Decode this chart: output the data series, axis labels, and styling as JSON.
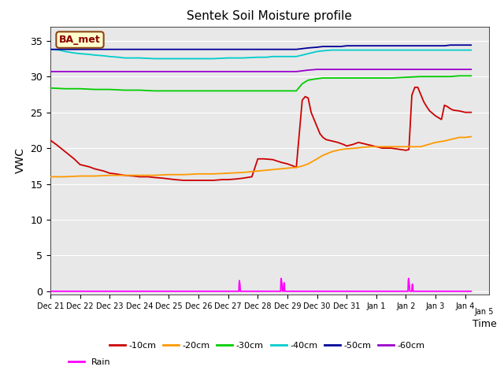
{
  "title": "Sentek Soil Moisture profile",
  "xlabel": "Time",
  "ylabel": "VWC",
  "annotation": "BA_met",
  "ylim": [
    -0.5,
    37
  ],
  "yticks": [
    0,
    5,
    10,
    15,
    20,
    25,
    30,
    35
  ],
  "background_color": "#e8e8e8",
  "figure_color": "#ffffff",
  "series": {
    "-10cm": {
      "color": "#cc0000",
      "points": [
        [
          21.0,
          21.1
        ],
        [
          21.2,
          20.5
        ],
        [
          21.5,
          19.5
        ],
        [
          21.8,
          18.5
        ],
        [
          22.0,
          17.7
        ],
        [
          22.3,
          17.4
        ],
        [
          22.5,
          17.1
        ],
        [
          22.8,
          16.8
        ],
        [
          23.0,
          16.5
        ],
        [
          23.2,
          16.4
        ],
        [
          23.5,
          16.2
        ],
        [
          23.8,
          16.1
        ],
        [
          24.0,
          16.0
        ],
        [
          24.3,
          16.0
        ],
        [
          24.5,
          15.9
        ],
        [
          24.8,
          15.8
        ],
        [
          25.0,
          15.7
        ],
        [
          25.2,
          15.6
        ],
        [
          25.5,
          15.5
        ],
        [
          25.8,
          15.5
        ],
        [
          26.0,
          15.5
        ],
        [
          26.3,
          15.5
        ],
        [
          26.5,
          15.5
        ],
        [
          26.8,
          15.6
        ],
        [
          27.0,
          15.6
        ],
        [
          27.3,
          15.7
        ],
        [
          27.5,
          15.8
        ],
        [
          27.8,
          16.0
        ],
        [
          28.0,
          18.5
        ],
        [
          28.2,
          18.5
        ],
        [
          28.5,
          18.4
        ],
        [
          28.8,
          18.0
        ],
        [
          29.0,
          17.8
        ],
        [
          29.2,
          17.5
        ],
        [
          29.3,
          17.3
        ],
        [
          29.5,
          26.7
        ],
        [
          29.6,
          27.2
        ],
        [
          29.7,
          27.0
        ],
        [
          29.8,
          25.0
        ],
        [
          30.0,
          23.0
        ],
        [
          30.1,
          22.0
        ],
        [
          30.2,
          21.5
        ],
        [
          30.3,
          21.2
        ],
        [
          30.5,
          21.0
        ],
        [
          30.7,
          20.8
        ],
        [
          30.9,
          20.5
        ],
        [
          31.0,
          20.3
        ],
        [
          31.2,
          20.5
        ],
        [
          31.4,
          20.8
        ],
        [
          31.5,
          20.7
        ],
        [
          32.0,
          20.2
        ],
        [
          32.2,
          20.0
        ],
        [
          32.5,
          20.0
        ],
        [
          33.0,
          19.7
        ],
        [
          33.1,
          19.8
        ],
        [
          33.2,
          27.4
        ],
        [
          33.3,
          28.5
        ],
        [
          33.4,
          28.5
        ],
        [
          33.5,
          27.5
        ],
        [
          33.6,
          26.5
        ],
        [
          33.7,
          25.8
        ],
        [
          33.8,
          25.2
        ],
        [
          34.0,
          24.5
        ],
        [
          34.2,
          24.0
        ],
        [
          34.3,
          26.0
        ],
        [
          34.4,
          25.8
        ],
        [
          34.5,
          25.5
        ],
        [
          34.6,
          25.3
        ],
        [
          34.8,
          25.2
        ],
        [
          35.0,
          25.0
        ],
        [
          35.2,
          25.0
        ]
      ]
    },
    "-20cm": {
      "color": "#ff9900",
      "points": [
        [
          21.0,
          16.0
        ],
        [
          21.5,
          16.0
        ],
        [
          22.0,
          16.1
        ],
        [
          22.5,
          16.1
        ],
        [
          23.0,
          16.2
        ],
        [
          23.5,
          16.2
        ],
        [
          24.0,
          16.2
        ],
        [
          24.5,
          16.2
        ],
        [
          25.0,
          16.3
        ],
        [
          25.5,
          16.3
        ],
        [
          26.0,
          16.4
        ],
        [
          26.5,
          16.4
        ],
        [
          27.0,
          16.5
        ],
        [
          27.5,
          16.6
        ],
        [
          28.0,
          16.8
        ],
        [
          28.5,
          17.0
        ],
        [
          29.0,
          17.2
        ],
        [
          29.3,
          17.3
        ],
        [
          29.5,
          17.5
        ],
        [
          29.7,
          17.8
        ],
        [
          30.0,
          18.5
        ],
        [
          30.2,
          19.0
        ],
        [
          30.5,
          19.5
        ],
        [
          30.8,
          19.8
        ],
        [
          31.0,
          19.9
        ],
        [
          31.3,
          20.0
        ],
        [
          31.5,
          20.1
        ],
        [
          31.8,
          20.2
        ],
        [
          32.0,
          20.2
        ],
        [
          32.2,
          20.2
        ],
        [
          32.5,
          20.2
        ],
        [
          33.0,
          20.2
        ],
        [
          33.2,
          20.2
        ],
        [
          33.5,
          20.2
        ],
        [
          34.0,
          20.8
        ],
        [
          34.3,
          21.0
        ],
        [
          34.5,
          21.2
        ],
        [
          34.8,
          21.5
        ],
        [
          35.0,
          21.5
        ],
        [
          35.2,
          21.6
        ]
      ]
    },
    "-30cm": {
      "color": "#00cc00",
      "points": [
        [
          21.0,
          28.4
        ],
        [
          21.5,
          28.3
        ],
        [
          22.0,
          28.3
        ],
        [
          22.5,
          28.2
        ],
        [
          23.0,
          28.2
        ],
        [
          23.5,
          28.1
        ],
        [
          24.0,
          28.1
        ],
        [
          24.5,
          28.0
        ],
        [
          25.0,
          28.0
        ],
        [
          25.5,
          28.0
        ],
        [
          26.0,
          28.0
        ],
        [
          26.5,
          28.0
        ],
        [
          27.0,
          28.0
        ],
        [
          27.5,
          28.0
        ],
        [
          28.0,
          28.0
        ],
        [
          28.5,
          28.0
        ],
        [
          29.0,
          28.0
        ],
        [
          29.3,
          28.0
        ],
        [
          29.5,
          29.0
        ],
        [
          29.7,
          29.5
        ],
        [
          30.0,
          29.7
        ],
        [
          30.2,
          29.8
        ],
        [
          30.5,
          29.8
        ],
        [
          30.8,
          29.8
        ],
        [
          31.0,
          29.8
        ],
        [
          31.5,
          29.8
        ],
        [
          32.0,
          29.8
        ],
        [
          32.5,
          29.8
        ],
        [
          33.0,
          29.9
        ],
        [
          33.5,
          30.0
        ],
        [
          34.0,
          30.0
        ],
        [
          34.3,
          30.0
        ],
        [
          34.5,
          30.0
        ],
        [
          34.8,
          30.1
        ],
        [
          35.0,
          30.1
        ],
        [
          35.2,
          30.1
        ]
      ]
    },
    "-40cm": {
      "color": "#00cccc",
      "points": [
        [
          21.0,
          33.8
        ],
        [
          21.3,
          33.7
        ],
        [
          21.5,
          33.5
        ],
        [
          21.8,
          33.3
        ],
        [
          22.0,
          33.2
        ],
        [
          22.3,
          33.1
        ],
        [
          22.5,
          33.0
        ],
        [
          22.8,
          32.9
        ],
        [
          23.0,
          32.8
        ],
        [
          23.3,
          32.7
        ],
        [
          23.5,
          32.6
        ],
        [
          23.8,
          32.6
        ],
        [
          24.0,
          32.6
        ],
        [
          24.5,
          32.5
        ],
        [
          25.0,
          32.5
        ],
        [
          25.5,
          32.5
        ],
        [
          26.0,
          32.5
        ],
        [
          26.5,
          32.5
        ],
        [
          27.0,
          32.6
        ],
        [
          27.5,
          32.6
        ],
        [
          28.0,
          32.7
        ],
        [
          28.3,
          32.7
        ],
        [
          28.5,
          32.8
        ],
        [
          29.0,
          32.8
        ],
        [
          29.3,
          32.8
        ],
        [
          29.5,
          33.0
        ],
        [
          29.7,
          33.2
        ],
        [
          30.0,
          33.5
        ],
        [
          30.2,
          33.6
        ],
        [
          30.5,
          33.7
        ],
        [
          30.8,
          33.7
        ],
        [
          31.0,
          33.7
        ],
        [
          31.5,
          33.7
        ],
        [
          32.0,
          33.7
        ],
        [
          32.5,
          33.7
        ],
        [
          33.0,
          33.7
        ],
        [
          33.5,
          33.7
        ],
        [
          34.0,
          33.7
        ],
        [
          34.5,
          33.7
        ],
        [
          35.0,
          33.7
        ],
        [
          35.2,
          33.7
        ]
      ]
    },
    "-50cm": {
      "color": "#000099",
      "points": [
        [
          21.0,
          33.8
        ],
        [
          21.5,
          33.8
        ],
        [
          22.0,
          33.8
        ],
        [
          22.5,
          33.8
        ],
        [
          23.0,
          33.8
        ],
        [
          23.5,
          33.8
        ],
        [
          24.0,
          33.8
        ],
        [
          24.5,
          33.8
        ],
        [
          25.0,
          33.8
        ],
        [
          25.5,
          33.8
        ],
        [
          26.0,
          33.8
        ],
        [
          26.5,
          33.8
        ],
        [
          27.0,
          33.8
        ],
        [
          27.5,
          33.8
        ],
        [
          28.0,
          33.8
        ],
        [
          28.5,
          33.8
        ],
        [
          29.0,
          33.8
        ],
        [
          29.3,
          33.8
        ],
        [
          29.5,
          33.9
        ],
        [
          29.7,
          34.0
        ],
        [
          30.0,
          34.1
        ],
        [
          30.2,
          34.2
        ],
        [
          30.5,
          34.2
        ],
        [
          30.8,
          34.2
        ],
        [
          31.0,
          34.3
        ],
        [
          31.5,
          34.3
        ],
        [
          32.0,
          34.3
        ],
        [
          32.5,
          34.3
        ],
        [
          33.0,
          34.3
        ],
        [
          33.5,
          34.3
        ],
        [
          34.0,
          34.3
        ],
        [
          34.3,
          34.3
        ],
        [
          34.5,
          34.4
        ],
        [
          34.8,
          34.4
        ],
        [
          35.0,
          34.4
        ],
        [
          35.2,
          34.4
        ]
      ]
    },
    "-60cm": {
      "color": "#9900cc",
      "points": [
        [
          21.0,
          30.7
        ],
        [
          21.5,
          30.7
        ],
        [
          22.0,
          30.7
        ],
        [
          22.5,
          30.7
        ],
        [
          23.0,
          30.7
        ],
        [
          23.5,
          30.7
        ],
        [
          24.0,
          30.7
        ],
        [
          24.5,
          30.7
        ],
        [
          25.0,
          30.7
        ],
        [
          25.5,
          30.7
        ],
        [
          26.0,
          30.7
        ],
        [
          26.5,
          30.7
        ],
        [
          27.0,
          30.7
        ],
        [
          27.5,
          30.7
        ],
        [
          28.0,
          30.7
        ],
        [
          28.5,
          30.7
        ],
        [
          29.0,
          30.7
        ],
        [
          29.3,
          30.7
        ],
        [
          29.5,
          30.8
        ],
        [
          29.7,
          30.9
        ],
        [
          30.0,
          31.0
        ],
        [
          30.5,
          31.0
        ],
        [
          31.0,
          31.0
        ],
        [
          31.5,
          31.0
        ],
        [
          32.0,
          31.0
        ],
        [
          32.5,
          31.0
        ],
        [
          33.0,
          31.0
        ],
        [
          33.5,
          31.0
        ],
        [
          34.0,
          31.0
        ],
        [
          34.5,
          31.0
        ],
        [
          35.0,
          31.0
        ],
        [
          35.2,
          31.0
        ]
      ]
    },
    "Rain": {
      "color": "#ff00ff",
      "points": [
        [
          21.0,
          0.0
        ],
        [
          27.35,
          0.0
        ],
        [
          27.36,
          0.0
        ],
        [
          27.37,
          1.2
        ],
        [
          27.38,
          1.5
        ],
        [
          27.39,
          1.2
        ],
        [
          27.4,
          0.8
        ],
        [
          27.41,
          0.0
        ],
        [
          28.75,
          0.0
        ],
        [
          28.77,
          0.0
        ],
        [
          28.78,
          1.5
        ],
        [
          28.79,
          1.8
        ],
        [
          28.8,
          1.5
        ],
        [
          28.81,
          1.2
        ],
        [
          28.82,
          0.8
        ],
        [
          28.83,
          0.0
        ],
        [
          28.85,
          0.0
        ],
        [
          28.87,
          0.0
        ],
        [
          28.88,
          1.0
        ],
        [
          28.89,
          1.2
        ],
        [
          28.9,
          0.8
        ],
        [
          28.91,
          0.0
        ],
        [
          33.05,
          0.0
        ],
        [
          33.07,
          0.0
        ],
        [
          33.08,
          1.5
        ],
        [
          33.09,
          1.8
        ],
        [
          33.1,
          1.5
        ],
        [
          33.11,
          1.0
        ],
        [
          33.12,
          0.8
        ],
        [
          33.13,
          0.0
        ],
        [
          33.18,
          0.0
        ],
        [
          33.2,
          0.0
        ],
        [
          33.21,
          0.8
        ],
        [
          33.22,
          1.0
        ],
        [
          33.23,
          0.8
        ],
        [
          33.24,
          0.0
        ],
        [
          35.2,
          0.0
        ]
      ]
    }
  },
  "xtick_positions": [
    21,
    22,
    23,
    24,
    25,
    26,
    27,
    28,
    29,
    30,
    31,
    32,
    33,
    34,
    35
  ],
  "xtick_labels": [
    "Dec 21",
    "Dec 22",
    "Dec 23",
    "Dec 24",
    "Dec 25",
    "Dec 26",
    "Dec 27",
    "Dec 28",
    "Dec 29",
    "Dec 30",
    "Dec 31",
    "Jan 1",
    "Jan 2",
    "Jan 3",
    "Jan 4"
  ],
  "xend_tick": 35.6,
  "xend_label": "Jan 5",
  "legend_order": [
    "-10cm",
    "-20cm",
    "-30cm",
    "-40cm",
    "-50cm",
    "-60cm",
    "Rain"
  ]
}
